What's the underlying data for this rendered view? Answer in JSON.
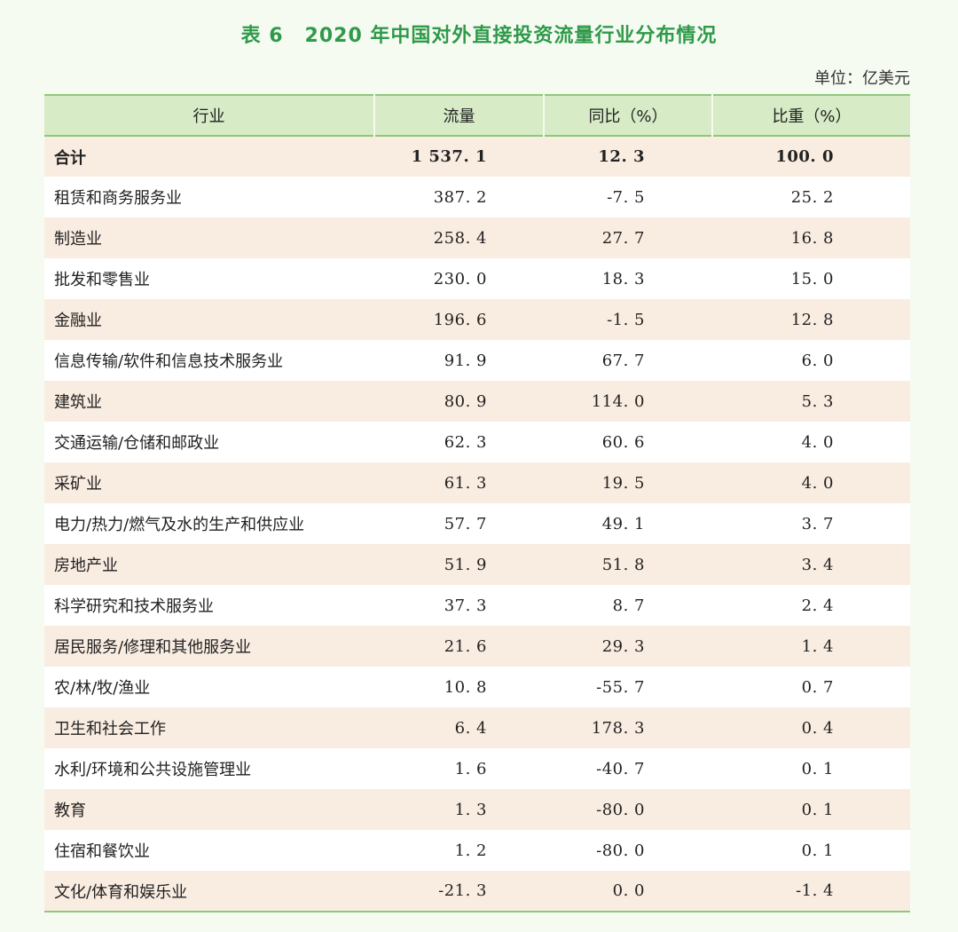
{
  "title": {
    "number": "表 6",
    "text": "2020 年中国对外直接投资流量行业分布情况"
  },
  "unit": "单位：亿美元",
  "table": {
    "headers": [
      "行业",
      "流量",
      "同比（%）",
      "比重（%）"
    ],
    "rows": [
      {
        "industry": "合计",
        "flow": "1 537. 1",
        "yoy": "12. 3",
        "share": "100. 0"
      },
      {
        "industry": "租赁和商务服务业",
        "flow": "387. 2",
        "yoy": "-7. 5",
        "share": "25. 2"
      },
      {
        "industry": "制造业",
        "flow": "258. 4",
        "yoy": "27. 7",
        "share": "16. 8"
      },
      {
        "industry": "批发和零售业",
        "flow": "230. 0",
        "yoy": "18. 3",
        "share": "15. 0"
      },
      {
        "industry": "金融业",
        "flow": "196. 6",
        "yoy": "-1. 5",
        "share": "12. 8"
      },
      {
        "industry": "信息传输/软件和信息技术服务业",
        "flow": "91. 9",
        "yoy": "67. 7",
        "share": "6. 0"
      },
      {
        "industry": "建筑业",
        "flow": "80. 9",
        "yoy": "114. 0",
        "share": "5. 3"
      },
      {
        "industry": "交通运输/仓储和邮政业",
        "flow": "62. 3",
        "yoy": "60. 6",
        "share": "4. 0"
      },
      {
        "industry": "采矿业",
        "flow": "61. 3",
        "yoy": "19. 5",
        "share": "4. 0"
      },
      {
        "industry": "电力/热力/燃气及水的生产和供应业",
        "flow": "57. 7",
        "yoy": "49. 1",
        "share": "3. 7"
      },
      {
        "industry": "房地产业",
        "flow": "51. 9",
        "yoy": "51. 8",
        "share": "3. 4"
      },
      {
        "industry": "科学研究和技术服务业",
        "flow": "37. 3",
        "yoy": "8. 7",
        "share": "2. 4"
      },
      {
        "industry": "居民服务/修理和其他服务业",
        "flow": "21. 6",
        "yoy": "29. 3",
        "share": "1. 4"
      },
      {
        "industry": "农/林/牧/渔业",
        "flow": "10. 8",
        "yoy": "-55. 7",
        "share": "0. 7"
      },
      {
        "industry": "卫生和社会工作",
        "flow": "6. 4",
        "yoy": "178. 3",
        "share": "0. 4"
      },
      {
        "industry": "水利/环境和公共设施管理业",
        "flow": "1. 6",
        "yoy": "-40. 7",
        "share": "0. 1"
      },
      {
        "industry": "教育",
        "flow": "1. 3",
        "yoy": "-80. 0",
        "share": "0. 1"
      },
      {
        "industry": "住宿和餐饮业",
        "flow": "1. 2",
        "yoy": "-80. 0",
        "share": "0. 1"
      },
      {
        "industry": "文化/体育和娱乐业",
        "flow": "-21. 3",
        "yoy": "0. 0",
        "share": "-1. 4"
      }
    ]
  }
}
